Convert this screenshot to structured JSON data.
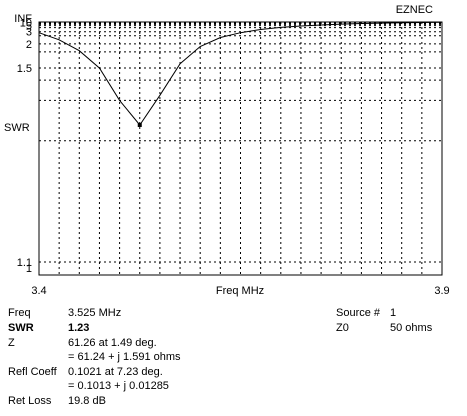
{
  "header": {
    "brand": "EZNEC"
  },
  "chart_data": {
    "type": "line",
    "title": "",
    "xlabel": "Freq MHz",
    "ylabel": "SWR",
    "xlim": [
      3.4,
      3.9
    ],
    "x_tick_labels": [
      "3.4",
      "3.9"
    ],
    "y_scale": "swr (1/(SWR-1)-spaced)",
    "y_ticks": [
      "INF",
      "10",
      "5",
      "3",
      "2",
      "1.5",
      "1.1",
      "1"
    ],
    "grid": true,
    "grid_x_divisions": 20,
    "series": [
      {
        "x": [
          3.4,
          3.425,
          3.45,
          3.475,
          3.5,
          3.525,
          3.55,
          3.575,
          3.6,
          3.625,
          3.65,
          3.675,
          3.7,
          3.725,
          3.75,
          3.775,
          3.8,
          3.825,
          3.85,
          3.875,
          3.9
        ],
        "y": [
          2.85,
          2.2,
          1.78,
          1.5,
          1.3,
          1.23,
          1.32,
          1.55,
          1.9,
          2.35,
          2.85,
          3.45,
          4.1,
          4.8,
          5.5,
          6.3,
          7.1,
          7.9,
          8.7,
          9.4,
          10.1
        ]
      }
    ],
    "line_color": "#000000",
    "marker": {
      "x": 3.525,
      "y": 1.23
    }
  },
  "readout": {
    "freq_label": "Freq",
    "freq_value": "3.525 MHz",
    "swr_label": "SWR",
    "swr_value": "1.23",
    "z_label": "Z",
    "z_line1": "61.26 at 1.49 deg.",
    "z_line2": "= 61.24 + j 1.591 ohms",
    "refl_label": "Refl Coeff",
    "refl_line1": "0.1021 at 7.23 deg.",
    "refl_line2": "= 0.1013 + j 0.01285",
    "retloss_label": "Ret Loss",
    "retloss_value": "19.8 dB",
    "source_label": "Source #",
    "source_value": "1",
    "z0_label": "Z0",
    "z0_value": "50 ohms"
  }
}
